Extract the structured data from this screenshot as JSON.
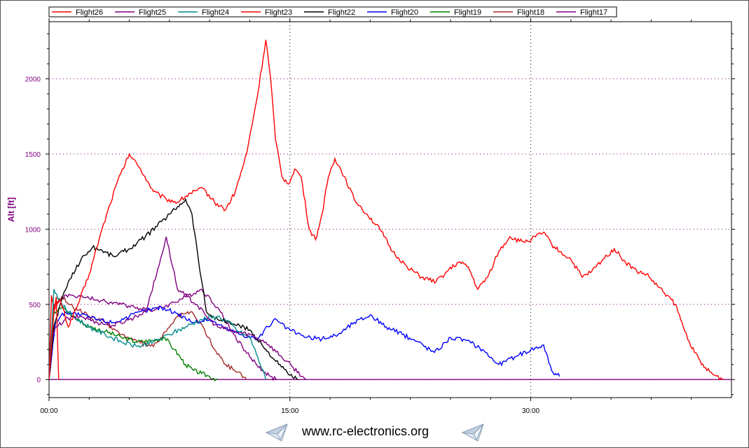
{
  "chart_data": {
    "type": "line",
    "title": "",
    "xlabel": "",
    "ylabel": "Alt [ft]",
    "xlim": [
      0,
      42.5
    ],
    "ylim": [
      -120,
      2380
    ],
    "x_ticks": [
      {
        "value": 0,
        "label": "00:00"
      },
      {
        "value": 15,
        "label": "15:00"
      },
      {
        "value": 30,
        "label": "30:00"
      }
    ],
    "y_ticks": [
      0,
      500,
      1000,
      1500,
      2000
    ],
    "grid": true,
    "legend_position": "top",
    "series": [
      {
        "name": "Flight26",
        "color": "#ff0000",
        "x": [
          0,
          0.3,
          0.7,
          1.2,
          1.8,
          2.5,
          3.3,
          4.2,
          5.0,
          5.7,
          6.5,
          7.3,
          8.0,
          8.8,
          9.6,
          10.3,
          11.0,
          11.6,
          12.3,
          13.0,
          13.5,
          13.8,
          14.1,
          14.5,
          14.9,
          15.3,
          15.7,
          16.2,
          16.6,
          17.0,
          17.4,
          17.8,
          18.4,
          19.0,
          19.8,
          20.6,
          21.4,
          22.3,
          23.2,
          24.1,
          24.8,
          25.5,
          26.1,
          26.7,
          27.3,
          28.0,
          28.7,
          29.3,
          29.8,
          30.3,
          30.8,
          31.3,
          31.8,
          32.5,
          33.2,
          33.8,
          34.5,
          35.2,
          35.9,
          36.6,
          37.2,
          37.9,
          38.5,
          39.0,
          39.6,
          40.2,
          40.8,
          41.4,
          42.0
        ],
        "y": [
          0,
          450,
          530,
          350,
          500,
          700,
          1000,
          1300,
          1500,
          1400,
          1250,
          1200,
          1180,
          1240,
          1270,
          1180,
          1130,
          1250,
          1500,
          1900,
          2260,
          2000,
          1600,
          1350,
          1300,
          1400,
          1350,
          1000,
          930,
          1100,
          1350,
          1470,
          1350,
          1200,
          1100,
          1000,
          850,
          750,
          680,
          650,
          720,
          780,
          750,
          600,
          680,
          850,
          950,
          920,
          920,
          950,
          980,
          900,
          850,
          800,
          680,
          720,
          800,
          870,
          780,
          720,
          700,
          620,
          560,
          500,
          320,
          180,
          80,
          30,
          0
        ]
      },
      {
        "name": "Flight25",
        "color": "#800080",
        "x": [
          0,
          0.2,
          0.5,
          1.0,
          2.0,
          3.0,
          4.0,
          5.0,
          6.0,
          6.7,
          7.3,
          7.7,
          8.0,
          8.6,
          9.2,
          9.8,
          10.5,
          11.5,
          12.5,
          13.5,
          14.5,
          15.2,
          15.8,
          16.0
        ],
        "y": [
          0,
          300,
          350,
          400,
          420,
          380,
          360,
          400,
          450,
          700,
          950,
          750,
          600,
          550,
          500,
          420,
          350,
          320,
          300,
          250,
          150,
          80,
          20,
          0
        ]
      },
      {
        "name": "Flight24",
        "color": "#008b8b",
        "x": [
          0,
          0.3,
          0.8,
          1.5,
          2.5,
          3.5,
          4.5,
          5.5,
          6.5,
          7.5,
          8.5,
          9.5,
          10.5,
          11.2,
          11.8,
          12.5,
          13.0,
          13.5
        ],
        "y": [
          0,
          600,
          500,
          420,
          350,
          300,
          250,
          220,
          250,
          300,
          350,
          400,
          420,
          380,
          320,
          280,
          150,
          0
        ]
      },
      {
        "name": "Flight23",
        "color": "#ff0000",
        "x": [
          0,
          0.15,
          0.3,
          0.45,
          0.6
        ],
        "y": [
          0,
          560,
          450,
          550,
          0
        ]
      },
      {
        "name": "Flight22",
        "color": "#000000",
        "x": [
          0,
          0.3,
          0.7,
          1.2,
          2.0,
          2.7,
          3.3,
          4.0,
          5.0,
          6.0,
          7.0,
          7.5,
          8.0,
          8.5,
          8.9,
          9.3,
          9.8,
          10.5,
          11.5,
          12.5,
          13.5,
          14.3,
          15.0,
          15.5
        ],
        "y": [
          0,
          350,
          500,
          650,
          800,
          880,
          860,
          820,
          870,
          950,
          1050,
          1100,
          1150,
          1200,
          1100,
          800,
          450,
          400,
          370,
          330,
          200,
          100,
          30,
          0
        ]
      },
      {
        "name": "Flight20",
        "color": "#0000ff",
        "x": [
          0,
          0.4,
          1.0,
          2.0,
          3.0,
          4.0,
          5.0,
          6.0,
          7.0,
          8.0,
          9.0,
          10.0,
          11.0,
          12.0,
          13.0,
          14.0,
          15.0,
          16.0,
          17.0,
          18.0,
          19.0,
          20.0,
          21.0,
          22.0,
          23.0,
          24.0,
          25.0,
          26.0,
          27.0,
          28.0,
          29.0,
          30.0,
          30.8,
          31.3,
          31.8
        ],
        "y": [
          0,
          380,
          450,
          430,
          400,
          380,
          420,
          460,
          480,
          440,
          380,
          400,
          340,
          300,
          270,
          400,
          330,
          280,
          270,
          300,
          380,
          430,
          350,
          300,
          250,
          180,
          280,
          260,
          200,
          100,
          150,
          200,
          230,
          60,
          20
        ]
      },
      {
        "name": "Flight19",
        "color": "#008000",
        "x": [
          0,
          0.3,
          0.8,
          1.5,
          2.5,
          3.5,
          4.5,
          5.5,
          6.5,
          7.2,
          7.8,
          8.5,
          9.0,
          9.5,
          10.0,
          10.5
        ],
        "y": [
          0,
          450,
          480,
          420,
          350,
          320,
          280,
          250,
          260,
          280,
          200,
          100,
          60,
          40,
          20,
          0
        ]
      },
      {
        "name": "Flight18",
        "color": "#a52a2a",
        "x": [
          0,
          0.3,
          0.8,
          1.5,
          2.5,
          3.5,
          4.5,
          5.5,
          6.5,
          7.3,
          8.0,
          8.8,
          9.6,
          10.3,
          11.0,
          11.8,
          12.3
        ],
        "y": [
          0,
          500,
          550,
          480,
          420,
          380,
          300,
          250,
          220,
          320,
          420,
          450,
          350,
          200,
          100,
          50,
          0
        ]
      },
      {
        "name": "Flight17",
        "color": "#800080",
        "x": [
          0,
          0.3,
          0.8,
          1.5,
          2.5,
          3.5,
          4.5,
          5.5,
          6.5,
          7.5,
          8.5,
          9.5,
          10.5,
          11.5,
          12.5,
          13.3,
          13.8,
          14.2
        ],
        "y": [
          0,
          480,
          550,
          560,
          540,
          520,
          500,
          480,
          460,
          500,
          550,
          600,
          480,
          300,
          150,
          60,
          20,
          0
        ]
      },
      {
        "name": "",
        "color": "#800080",
        "x": [
          0,
          42.5
        ],
        "y": [
          0,
          0
        ]
      }
    ]
  },
  "footer": {
    "link_text": "www.rc-electronics.org"
  },
  "icons": {
    "left": "paper-plane-icon",
    "right": "paper-plane-icon"
  }
}
